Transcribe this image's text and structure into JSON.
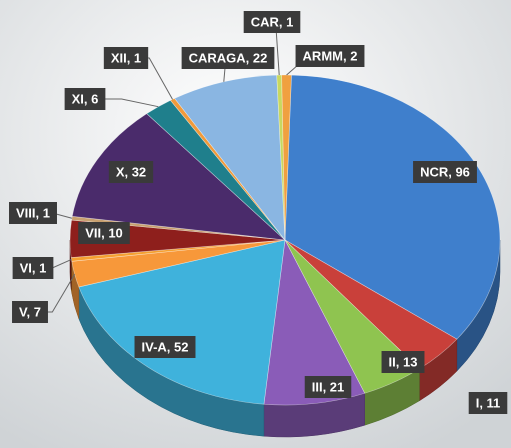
{
  "chart_data": {
    "type": "pie",
    "categories": [
      "NCR",
      "I",
      "II",
      "III",
      "IV-A",
      "V",
      "VI",
      "VII",
      "VIII",
      "X",
      "XI",
      "XII",
      "CARAGA",
      "CAR",
      "ARMM"
    ],
    "values": [
      96,
      11,
      13,
      21,
      52,
      7,
      1,
      10,
      1,
      32,
      6,
      1,
      22,
      1,
      2
    ],
    "value_labels": [
      "NCR, 96",
      "I, 11",
      "II, 13",
      "III, 21",
      "IV-A, 52",
      "V, 7",
      "VI, 1",
      "VII, 10",
      "VIII, 1",
      "X, 32",
      "XI, 6",
      "XII, 1",
      "CARAGA, 22",
      "CAR, 1",
      "ARMM, 2"
    ],
    "colors": [
      "#3f7fcc",
      "#c9403a",
      "#8fc450",
      "#8a5cb8",
      "#3fb2dc",
      "#f7983a",
      "#f5a030",
      "#8e1f1c",
      "#c8a070",
      "#4a2b6b",
      "#1f7f8c",
      "#f09a3a",
      "#8ab6e2",
      "#c8d860",
      "#f0a040"
    ]
  }
}
